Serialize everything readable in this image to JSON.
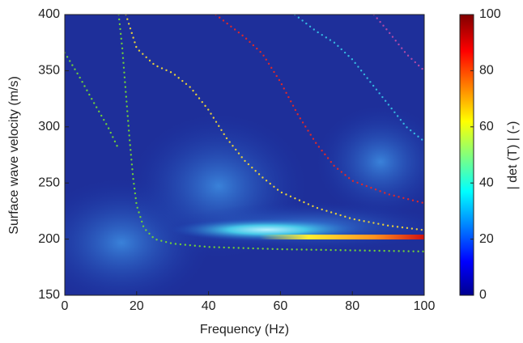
{
  "chart_data": {
    "type": "heatmap",
    "xlabel": "Frequency (Hz)",
    "ylabel": "Surface wave velocity (m/s)",
    "xlim": [
      0,
      100
    ],
    "xticks": [
      0,
      20,
      40,
      60,
      80,
      100
    ],
    "ylim": [
      150,
      400
    ],
    "yticks": [
      150,
      200,
      250,
      300,
      350,
      400
    ],
    "series": [
      {
        "color": "#6fcf3a",
        "x": [
          0,
          4,
          8,
          12,
          15
        ],
        "values": [
          366,
          345,
          322,
          300,
          280
        ]
      },
      {
        "color": "#6fcf3a",
        "x": [
          15,
          16,
          17,
          18,
          19,
          20,
          22,
          25,
          30,
          40,
          60,
          80,
          100
        ],
        "values": [
          400,
          370,
          330,
          290,
          255,
          230,
          210,
          200,
          196,
          193,
          191,
          190,
          189
        ]
      },
      {
        "color": "#e6cf3c",
        "x": [
          17,
          20,
          25,
          30,
          35,
          40,
          45,
          50,
          55,
          60,
          70,
          80,
          90,
          100
        ],
        "values": [
          400,
          370,
          355,
          348,
          335,
          315,
          290,
          270,
          255,
          242,
          228,
          218,
          212,
          208
        ]
      },
      {
        "color": "#e02828",
        "x": [
          42,
          50,
          55,
          60,
          65,
          70,
          75,
          80,
          90,
          100
        ],
        "values": [
          400,
          380,
          365,
          340,
          310,
          285,
          265,
          252,
          240,
          232
        ]
      },
      {
        "color": "#35b8e0",
        "x": [
          64,
          70,
          75,
          80,
          85,
          90,
          95,
          100
        ],
        "values": [
          400,
          385,
          375,
          360,
          340,
          320,
          300,
          287
        ]
      },
      {
        "color": "#b04aa8",
        "x": [
          86,
          90,
          95,
          100
        ],
        "values": [
          400,
          385,
          365,
          350
        ]
      }
    ],
    "colorbar": {
      "label": "| det (T) | (-)",
      "lim": [
        0,
        100
      ],
      "ticks": [
        0,
        20,
        40,
        60,
        80,
        100
      ]
    }
  }
}
